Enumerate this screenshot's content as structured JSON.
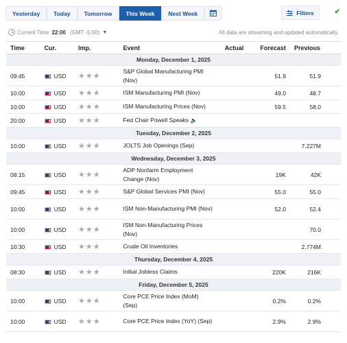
{
  "tabs": [
    {
      "label": "Yesterday",
      "active": false
    },
    {
      "label": "Today",
      "active": false
    },
    {
      "label": "Tomorrow",
      "active": false
    },
    {
      "label": "This Week",
      "active": true
    },
    {
      "label": "Next Week",
      "active": false
    }
  ],
  "calendar_icon": "calendar-icon",
  "filters": {
    "label": "Filters",
    "icon": "filter-sliders-icon"
  },
  "status_check_icon": "checkmark-icon",
  "timebar": {
    "label": "Current Time:",
    "time": "22:00",
    "timezone": "(GMT -5:00)",
    "notice": "All data are streaming and updated automatically."
  },
  "columns": {
    "time": "Time",
    "currency": "Cur.",
    "importance": "Imp.",
    "event": "Event",
    "actual": "Actual",
    "forecast": "Forecast",
    "previous": "Previous"
  },
  "days": [
    {
      "label": "Monday, December 1, 2025",
      "events": [
        {
          "time": "09:45",
          "currency": "USD",
          "event": "S&P Global Manufacturing PMI (Nov)",
          "actual": "",
          "forecast": "51.9",
          "previous": "51.9",
          "tall": true
        },
        {
          "time": "10:00",
          "currency": "USD",
          "event": "ISM Manufacturing PMI (Nov)",
          "actual": "",
          "forecast": "49.0",
          "previous": "48.7",
          "tall": false
        },
        {
          "time": "10:00",
          "currency": "USD",
          "event": "ISM Manufacturing Prices (Nov)",
          "actual": "",
          "forecast": "59.5",
          "previous": "58.0",
          "tall": false
        },
        {
          "time": "20:00",
          "currency": "USD",
          "event": "Fed Chair Powell Speaks",
          "actual": "",
          "forecast": "",
          "previous": "",
          "tall": false,
          "speaker": true
        }
      ]
    },
    {
      "label": "Tuesday, December 2, 2025",
      "events": [
        {
          "time": "10:00",
          "currency": "USD",
          "event": "JOLTS Job Openings (Sep)",
          "actual": "",
          "forecast": "",
          "previous": "7.227M",
          "tall": false
        }
      ]
    },
    {
      "label": "Wednesday, December 3, 2025",
      "events": [
        {
          "time": "08:15",
          "currency": "USD",
          "event": "ADP Nonfarm Employment Change (Nov)",
          "actual": "",
          "forecast": "19K",
          "previous": "42K",
          "tall": true
        },
        {
          "time": "09:45",
          "currency": "USD",
          "event": "S&P Global Services PMI (Nov)",
          "actual": "",
          "forecast": "55.0",
          "previous": "55.0",
          "tall": false
        },
        {
          "time": "10:00",
          "currency": "USD",
          "event": "ISM Non-Manufacturing PMI (Nov)",
          "actual": "",
          "forecast": "52.0",
          "previous": "52.4",
          "tall": true
        },
        {
          "time": "10:00",
          "currency": "USD",
          "event": "ISM Non-Manufacturing Prices (Nov)",
          "actual": "",
          "forecast": "",
          "previous": "70.0",
          "tall": true
        },
        {
          "time": "10:30",
          "currency": "USD",
          "event": "Crude Oil Inventories",
          "actual": "",
          "forecast": "",
          "previous": "2.774M",
          "tall": false
        }
      ]
    },
    {
      "label": "Thursday, December 4, 2025",
      "events": [
        {
          "time": "08:30",
          "currency": "USD",
          "event": "Initial Jobless Claims",
          "actual": "",
          "forecast": "220K",
          "previous": "216K",
          "tall": false
        }
      ]
    },
    {
      "label": "Friday, December 5, 2025",
      "events": [
        {
          "time": "10:00",
          "currency": "USD",
          "event": "Core PCE Price Index (MoM) (Sep)",
          "actual": "",
          "forecast": "0.2%",
          "previous": "0.2%",
          "tall": true
        },
        {
          "time": "10:00",
          "currency": "USD",
          "event": "Core PCE Price Index (YoY) (Sep)",
          "actual": "",
          "forecast": "2.9%",
          "previous": "2.9%",
          "tall": true
        }
      ]
    }
  ],
  "importance_stars": "★★★",
  "flag_icon": "us-flag-icon",
  "speaker_icon": "speaker-icon",
  "colors": {
    "accent": "#1d5fa8",
    "tab_text": "#1d4f91",
    "check": "#2ca02c",
    "day_bg": "#eef1f5"
  }
}
